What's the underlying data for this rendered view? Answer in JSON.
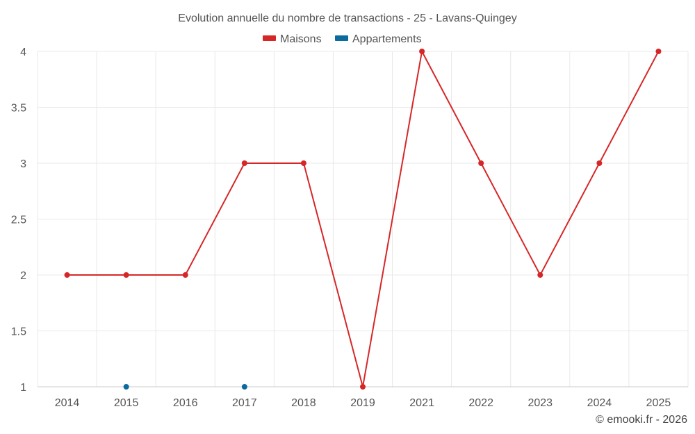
{
  "chart_data": {
    "type": "line",
    "title": "Evolution annuelle du nombre de transactions - 25 - Lavans-Quingey",
    "categories": [
      "2014",
      "2015",
      "2016",
      "2017",
      "2018",
      "2019",
      "2021",
      "2022",
      "2023",
      "2024",
      "2025"
    ],
    "series": [
      {
        "name": "Maisons",
        "color": "#d62728",
        "values": [
          2,
          2,
          2,
          3,
          3,
          1,
          4,
          3,
          2,
          3,
          4
        ]
      },
      {
        "name": "Appartements",
        "color": "#0b6a9e",
        "values": [
          null,
          1,
          null,
          1,
          null,
          null,
          null,
          null,
          null,
          null,
          null
        ]
      }
    ],
    "ylim": [
      1,
      4
    ],
    "yticks": [
      "1",
      "1.5",
      "2",
      "2.5",
      "3",
      "3.5",
      "4"
    ],
    "xlabel": "",
    "ylabel": "",
    "grid": true,
    "legend_position": "top-center"
  },
  "credit": "© emooki.fr - 2026"
}
